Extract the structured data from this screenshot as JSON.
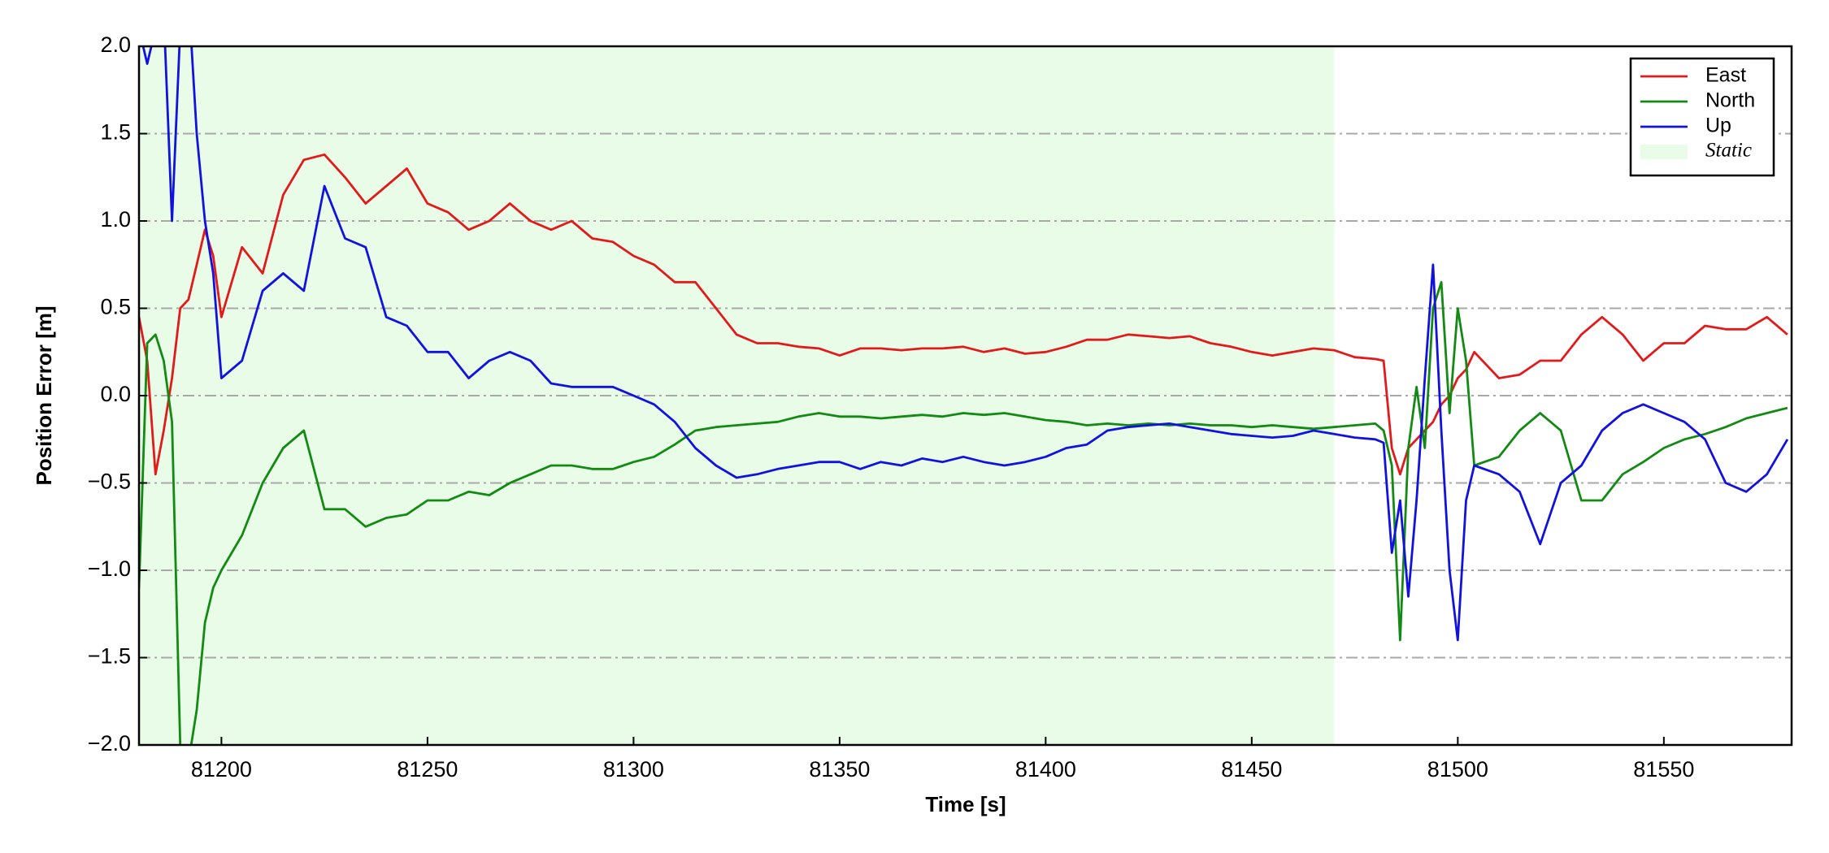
{
  "chart_data": {
    "type": "line",
    "xlabel": "Time [s]",
    "ylabel": "Position Error [m]",
    "x": [
      81180,
      81182,
      81184,
      81186,
      81188,
      81190,
      81192,
      81194,
      81196,
      81198,
      81200,
      81205,
      81210,
      81215,
      81220,
      81225,
      81230,
      81235,
      81240,
      81245,
      81250,
      81255,
      81260,
      81265,
      81270,
      81275,
      81280,
      81285,
      81290,
      81295,
      81300,
      81305,
      81310,
      81315,
      81320,
      81325,
      81330,
      81335,
      81340,
      81345,
      81350,
      81355,
      81360,
      81365,
      81370,
      81375,
      81380,
      81385,
      81390,
      81395,
      81400,
      81405,
      81410,
      81415,
      81420,
      81425,
      81430,
      81435,
      81440,
      81445,
      81450,
      81455,
      81460,
      81465,
      81470,
      81475,
      81480,
      81482,
      81484,
      81486,
      81488,
      81490,
      81492,
      81494,
      81496,
      81498,
      81500,
      81502,
      81504,
      81510,
      81515,
      81520,
      81525,
      81530,
      81535,
      81540,
      81545,
      81550,
      81555,
      81560,
      81565,
      81570,
      81575,
      81580
    ],
    "series": [
      {
        "name": "East",
        "color": "#e31a1c",
        "values": [
          0.45,
          0.2,
          -0.45,
          -0.2,
          0.1,
          0.5,
          0.55,
          0.75,
          0.95,
          0.8,
          0.45,
          0.85,
          0.7,
          1.15,
          1.35,
          1.38,
          1.25,
          1.1,
          1.2,
          1.3,
          1.1,
          1.05,
          0.95,
          1.0,
          1.1,
          1.0,
          0.95,
          1.0,
          0.9,
          0.88,
          0.8,
          0.75,
          0.65,
          0.65,
          0.5,
          0.35,
          0.3,
          0.3,
          0.28,
          0.27,
          0.23,
          0.27,
          0.27,
          0.26,
          0.27,
          0.27,
          0.28,
          0.25,
          0.27,
          0.24,
          0.25,
          0.28,
          0.32,
          0.32,
          0.35,
          0.34,
          0.33,
          0.34,
          0.3,
          0.28,
          0.25,
          0.23,
          0.25,
          0.27,
          0.26,
          0.22,
          0.21,
          0.2,
          -0.3,
          -0.45,
          -0.3,
          -0.25,
          -0.2,
          -0.15,
          -0.05,
          0.0,
          0.1,
          0.15,
          0.25,
          0.1,
          0.12,
          0.2,
          0.2,
          0.35,
          0.45,
          0.35,
          0.2,
          0.3,
          0.3,
          0.4,
          0.38,
          0.38,
          0.45,
          0.35
        ]
      },
      {
        "name": "North",
        "color": "#138a13",
        "values": [
          -1.1,
          0.3,
          0.35,
          0.2,
          -0.15,
          -2.0,
          -2.1,
          -1.8,
          -1.3,
          -1.1,
          -1.0,
          -0.8,
          -0.5,
          -0.3,
          -0.2,
          -0.65,
          -0.65,
          -0.75,
          -0.7,
          -0.68,
          -0.6,
          -0.6,
          -0.55,
          -0.57,
          -0.5,
          -0.45,
          -0.4,
          -0.4,
          -0.42,
          -0.42,
          -0.38,
          -0.35,
          -0.28,
          -0.2,
          -0.18,
          -0.17,
          -0.16,
          -0.15,
          -0.12,
          -0.1,
          -0.12,
          -0.12,
          -0.13,
          -0.12,
          -0.11,
          -0.12,
          -0.1,
          -0.11,
          -0.1,
          -0.12,
          -0.14,
          -0.15,
          -0.17,
          -0.16,
          -0.17,
          -0.16,
          -0.17,
          -0.16,
          -0.17,
          -0.17,
          -0.18,
          -0.17,
          -0.18,
          -0.19,
          -0.18,
          -0.17,
          -0.16,
          -0.2,
          -0.4,
          -1.4,
          -0.3,
          0.05,
          -0.3,
          0.5,
          0.65,
          -0.1,
          0.5,
          0.2,
          -0.4,
          -0.35,
          -0.2,
          -0.1,
          -0.2,
          -0.6,
          -0.6,
          -0.45,
          -0.38,
          -0.3,
          -0.25,
          -0.22,
          -0.18,
          -0.13,
          -0.1,
          -0.07
        ]
      },
      {
        "name": "Up",
        "color": "#1212e0",
        "values": [
          2.1,
          1.9,
          2.1,
          2.2,
          1.0,
          2.1,
          2.3,
          1.5,
          1.0,
          0.7,
          0.1,
          0.2,
          0.6,
          0.7,
          0.6,
          1.2,
          0.9,
          0.85,
          0.45,
          0.4,
          0.25,
          0.25,
          0.1,
          0.2,
          0.25,
          0.2,
          0.07,
          0.05,
          0.05,
          0.05,
          0.0,
          -0.05,
          -0.15,
          -0.3,
          -0.4,
          -0.47,
          -0.45,
          -0.42,
          -0.4,
          -0.38,
          -0.38,
          -0.42,
          -0.38,
          -0.4,
          -0.36,
          -0.38,
          -0.35,
          -0.38,
          -0.4,
          -0.38,
          -0.35,
          -0.3,
          -0.28,
          -0.2,
          -0.18,
          -0.17,
          -0.16,
          -0.18,
          -0.2,
          -0.22,
          -0.23,
          -0.24,
          -0.23,
          -0.2,
          -0.22,
          -0.24,
          -0.25,
          -0.27,
          -0.9,
          -0.6,
          -1.15,
          -0.6,
          0.1,
          0.75,
          -0.2,
          -1.0,
          -1.4,
          -0.6,
          -0.4,
          -0.45,
          -0.55,
          -0.85,
          -0.5,
          -0.4,
          -0.2,
          -0.1,
          -0.05,
          -0.1,
          -0.15,
          -0.25,
          -0.5,
          -0.55,
          -0.45,
          -0.25
        ]
      }
    ],
    "region": {
      "name": "Static",
      "color": "#e8fce8",
      "xlim": [
        81180,
        81470
      ]
    },
    "xlim": [
      81180,
      81581
    ],
    "xticks": [
      81200,
      81250,
      81300,
      81350,
      81400,
      81450,
      81500,
      81550
    ],
    "ylim": [
      -2,
      2
    ],
    "yticks": [
      {
        "value": -2,
        "label": "−2.0"
      },
      {
        "value": -1.5,
        "label": "−1.5"
      },
      {
        "value": -1,
        "label": "−1.0"
      },
      {
        "value": -0.5,
        "label": "−0.5"
      },
      {
        "value": 0,
        "label": "0.0"
      },
      {
        "value": 0.5,
        "label": "0.5"
      },
      {
        "value": 1,
        "label": "1.0"
      },
      {
        "value": 1.5,
        "label": "1.5"
      },
      {
        "value": 2,
        "label": "2.0"
      }
    ],
    "grid": true,
    "legend": "upper right"
  }
}
